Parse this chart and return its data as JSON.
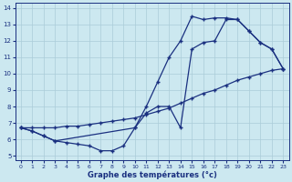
{
  "xlabel": "Graphe des températures (°c)",
  "bg_color": "#cce8f0",
  "grid_color": "#aaccd8",
  "line_color": "#1a3080",
  "xlim_min": -0.5,
  "xlim_max": 23.5,
  "ylim_min": 4.7,
  "ylim_max": 14.3,
  "xticks": [
    0,
    1,
    2,
    3,
    4,
    5,
    6,
    7,
    8,
    9,
    10,
    11,
    12,
    13,
    14,
    15,
    16,
    17,
    18,
    19,
    20,
    21,
    22,
    23
  ],
  "yticks": [
    5,
    6,
    7,
    8,
    9,
    10,
    11,
    12,
    13,
    14
  ],
  "line1_x": [
    0,
    1,
    2,
    3,
    4,
    5,
    6,
    7,
    8,
    9,
    10,
    11,
    12,
    13,
    14,
    15,
    16,
    17,
    18,
    19,
    20,
    21,
    22,
    23
  ],
  "line1_y": [
    6.7,
    6.5,
    6.2,
    5.9,
    5.8,
    5.7,
    5.6,
    5.3,
    5.3,
    5.6,
    6.7,
    7.6,
    8.0,
    8.0,
    6.7,
    11.5,
    11.9,
    12.0,
    13.3,
    13.3,
    12.6,
    11.9,
    11.5,
    10.3
  ],
  "line2_x": [
    0,
    1,
    2,
    3,
    4,
    5,
    6,
    7,
    8,
    9,
    10,
    11,
    12,
    13,
    14,
    15,
    16,
    17,
    18,
    19,
    20,
    21,
    22,
    23
  ],
  "line2_y": [
    6.7,
    6.7,
    6.7,
    6.7,
    6.8,
    6.8,
    6.9,
    7.0,
    7.1,
    7.2,
    7.3,
    7.5,
    7.7,
    7.9,
    8.2,
    8.5,
    8.8,
    9.0,
    9.3,
    9.6,
    9.8,
    10.0,
    10.2,
    10.3
  ],
  "line3_x": [
    0,
    1,
    2,
    3,
    10,
    11,
    12,
    13,
    14,
    15,
    16,
    17,
    18,
    19,
    20,
    21,
    22,
    23
  ],
  "line3_y": [
    6.7,
    6.5,
    6.2,
    5.9,
    6.7,
    8.0,
    9.5,
    11.0,
    12.0,
    13.5,
    13.3,
    13.4,
    13.4,
    13.3,
    12.6,
    11.9,
    11.5,
    10.3
  ]
}
